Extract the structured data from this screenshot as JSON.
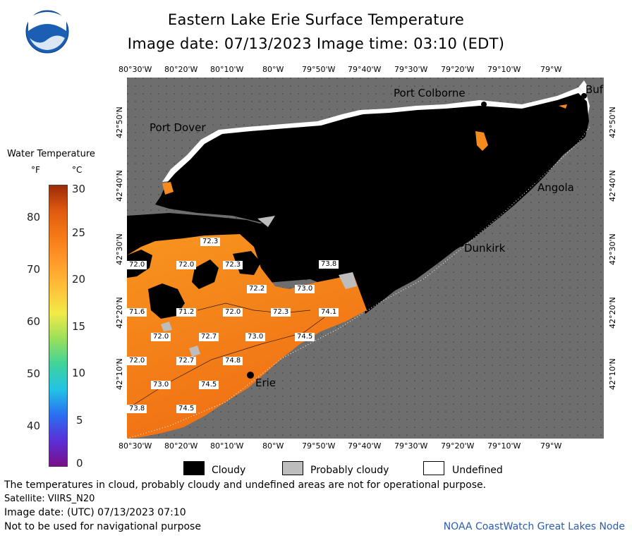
{
  "title": "Eastern Lake Erie Surface Temperature",
  "subtitle": "Image date: 07/13/2023     Image time: 03:10 (EDT)",
  "logo_text": "NOAA",
  "top_ticks": [
    "80°30'W",
    "80°20'W",
    "80°10'W",
    "80°W",
    "79°50'W",
    "79°40'W",
    "79°30'W",
    "79°20'W",
    "79°10'W",
    "79°W"
  ],
  "bottom_ticks": [
    "80°30'W",
    "80°20'W",
    "80°10'W",
    "80°W",
    "79°50'W",
    "79°40'W",
    "79°30'W",
    "79°20'W",
    "79°10'W",
    "79°W"
  ],
  "left_ticks": [
    "42°50'N",
    "42°40'N",
    "42°30'N",
    "42°20'N",
    "42°10'N"
  ],
  "right_ticks": [
    "42°50'N",
    "42°40'N",
    "42°30'N",
    "42°20'N",
    "42°10'N"
  ],
  "cities": {
    "port_colborne": "Port Colborne",
    "port_dover": "Port Dover",
    "buffalo": "Buf",
    "angola": "Angola",
    "dunkirk": "Dunkirk",
    "erie": "Erie"
  },
  "temp_labels": [
    "72.3",
    "72.0",
    "72.0",
    "72.3",
    "73.8",
    "72.2",
    "73.0",
    "71.6",
    "71.2",
    "72.0",
    "72.3",
    "74.1",
    "72.0",
    "72.7",
    "73.0",
    "74.5",
    "72.0",
    "72.7",
    "74.8",
    "73.0",
    "74.5",
    "73.8",
    "74.5"
  ],
  "colorbar": {
    "title": "Water Temperature",
    "unit_f": "°F",
    "unit_c": "°C",
    "f_ticks": [
      "80",
      "70",
      "60",
      "50",
      "40"
    ],
    "c_ticks": [
      "30",
      "25",
      "20",
      "15",
      "10",
      "5",
      "0"
    ],
    "colors": [
      "#7a0f8a",
      "#5b2fd6",
      "#2a6ff0",
      "#22c3e6",
      "#3fd39a",
      "#9be05a",
      "#f2ea47",
      "#ffc03a",
      "#ff9a2a",
      "#f57a17",
      "#e05a10",
      "#9c2a08"
    ]
  },
  "legend": {
    "cloudy": "Cloudy",
    "probably_cloudy": "Probably cloudy",
    "undefined": "Undefined",
    "colors": {
      "cloudy": "#000000",
      "probably_cloudy": "#bdbdbd",
      "undefined": "#ffffff"
    }
  },
  "colors": {
    "land": "#6e6e6e",
    "water_warm": "#f58a1e",
    "cloud": "#000000"
  },
  "footer": {
    "line1": "The temperatures in cloud, probably cloudy and undefined areas are not for operational purpose.",
    "line2": "Satellite: VIIRS_N20",
    "line3": "Image date: (UTC) 07/13/2023  07:10",
    "line4": "Not to be used for navigational purpose",
    "credit": "NOAA CoastWatch Great Lakes Node"
  }
}
